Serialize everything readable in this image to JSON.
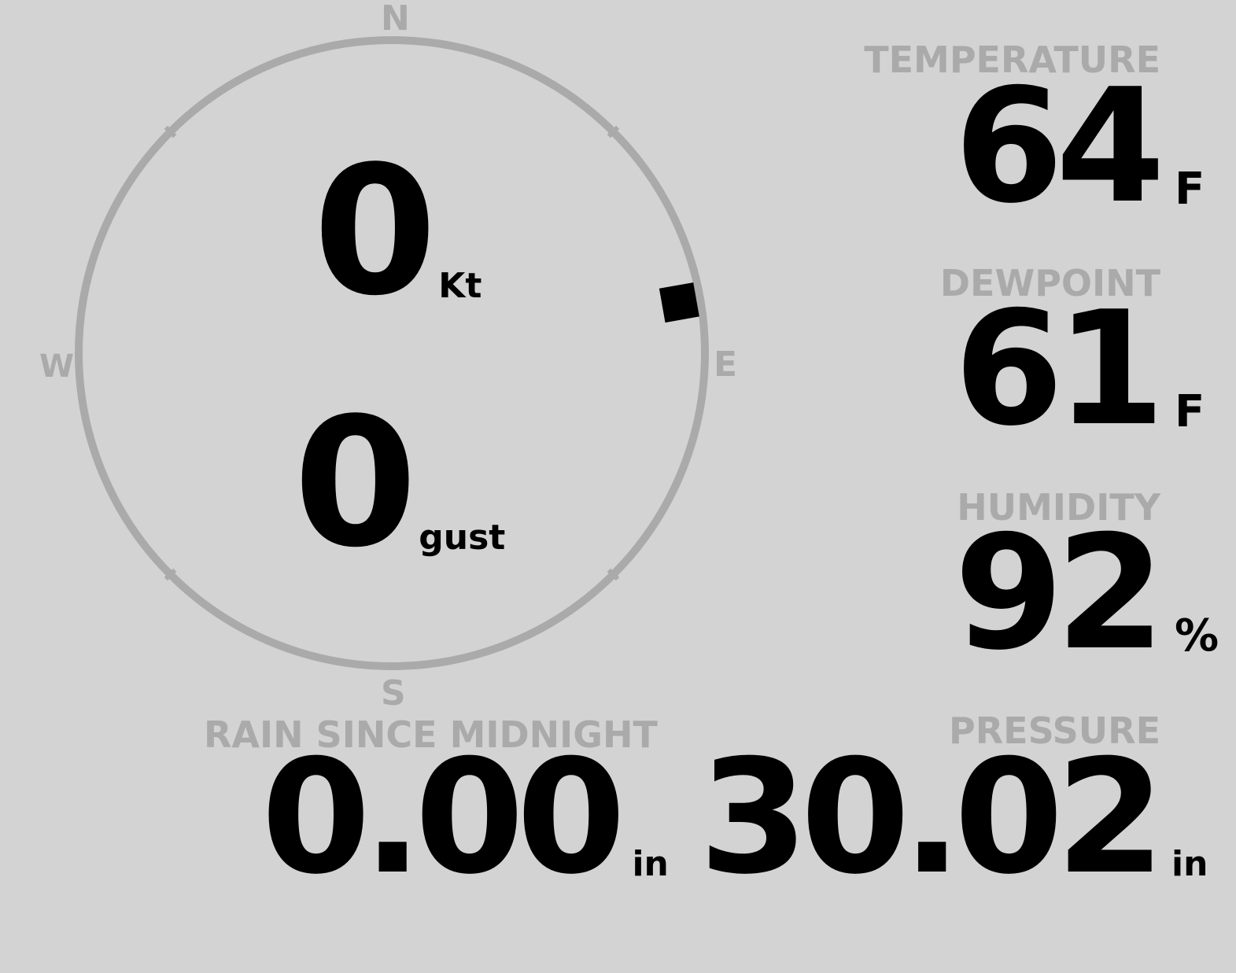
{
  "compass": {
    "labels": {
      "north": "N",
      "south": "S",
      "east": "E",
      "west": "W"
    },
    "wind_direction_deg": 80,
    "ring_color": "#aaaaaa",
    "pointer_color": "#000000"
  },
  "wind": {
    "speed": "0",
    "speed_unit": "Kt",
    "gust": "0",
    "gust_unit": "gust"
  },
  "temperature": {
    "label": "TEMPERATURE",
    "value": "64",
    "unit": "F"
  },
  "dewpoint": {
    "label": "DEWPOINT",
    "value": "61",
    "unit": "F"
  },
  "humidity": {
    "label": "HUMIDITY",
    "value": "92",
    "unit": "%"
  },
  "rain": {
    "label": "RAIN SINCE MIDNIGHT",
    "value": "0.00",
    "unit": "in"
  },
  "pressure": {
    "label": "PRESSURE",
    "value": "30.02",
    "unit": "in"
  }
}
